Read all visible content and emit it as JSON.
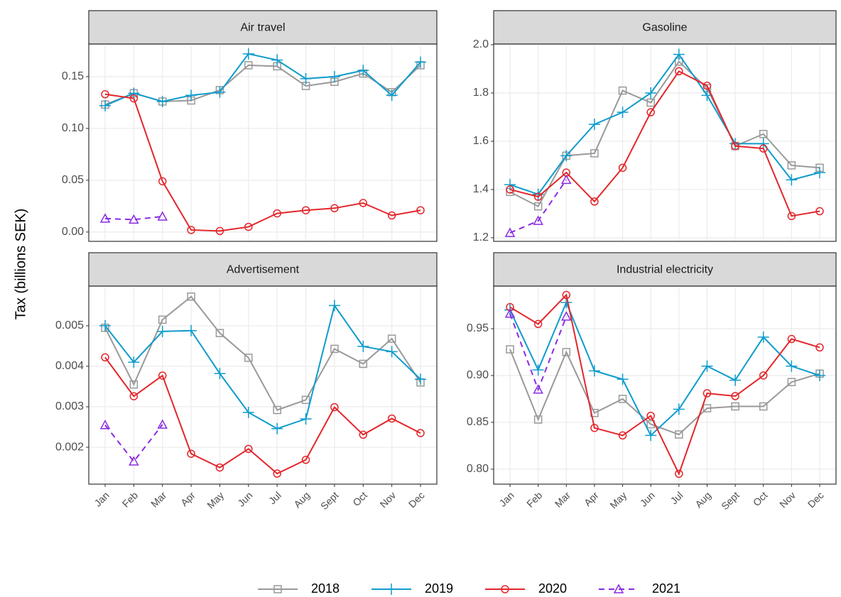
{
  "ylabel": "Tax (billions SEK)",
  "chart_data": [
    {
      "type": "line",
      "title": "Air travel",
      "categories": [
        "Jan",
        "Feb",
        "Mar",
        "Apr",
        "May",
        "Jun",
        "Jul",
        "Aug",
        "Sept",
        "Oct",
        "Nov",
        "Dec"
      ],
      "ylim": [
        -0.009,
        0.1815
      ],
      "yticks": [
        {
          "value": 0,
          "label": "0.00"
        },
        {
          "value": 0.05,
          "label": "0.05"
        },
        {
          "value": 0.1,
          "label": "0.10"
        },
        {
          "value": 0.15,
          "label": "0.15"
        }
      ],
      "grid": true,
      "series": [
        {
          "name": "2018",
          "color": "#999999",
          "marker": "square",
          "dashed": false,
          "values": [
            0.123,
            0.134,
            0.126,
            0.127,
            0.137,
            0.161,
            0.16,
            0.141,
            0.145,
            0.153,
            0.135,
            0.161
          ]
        },
        {
          "name": "2019",
          "color": "#0f9ccc",
          "marker": "plus",
          "dashed": false,
          "values": [
            0.122,
            0.134,
            0.126,
            0.132,
            0.135,
            0.172,
            0.166,
            0.148,
            0.15,
            0.156,
            0.132,
            0.164
          ]
        },
        {
          "name": "2020",
          "color": "#e3262b",
          "marker": "circle",
          "dashed": false,
          "values": [
            0.133,
            0.129,
            0.049,
            0.002,
            0.001,
            0.005,
            0.018,
            0.021,
            0.023,
            0.028,
            0.016,
            0.021
          ]
        },
        {
          "name": "2021",
          "color": "#8a2be2",
          "marker": "triangle",
          "dashed": true,
          "values": [
            0.013,
            0.012,
            0.015,
            null,
            null,
            null,
            null,
            null,
            null,
            null,
            null,
            null
          ]
        }
      ]
    },
    {
      "type": "line",
      "title": "Gasoline",
      "categories": [
        "Jan",
        "Feb",
        "Mar",
        "Apr",
        "May",
        "Jun",
        "Jul",
        "Aug",
        "Sept",
        "Oct",
        "Nov",
        "Dec"
      ],
      "ylim": [
        1.185,
        2.003
      ],
      "yticks": [
        1.2,
        1.4,
        1.6,
        1.8,
        {
          "value": 2,
          "label": "2.0"
        }
      ],
      "grid": true,
      "series": [
        {
          "name": "2018",
          "color": "#999999",
          "marker": "square",
          "dashed": false,
          "values": [
            1.39,
            1.33,
            1.54,
            1.55,
            1.81,
            1.76,
            1.93,
            1.82,
            1.58,
            1.63,
            1.5,
            1.49
          ]
        },
        {
          "name": "2019",
          "color": "#0f9ccc",
          "marker": "plus",
          "dashed": false,
          "values": [
            1.42,
            1.38,
            1.54,
            1.67,
            1.72,
            1.8,
            1.96,
            1.79,
            1.59,
            1.59,
            1.44,
            1.47
          ]
        },
        {
          "name": "2020",
          "color": "#e3262b",
          "marker": "circle",
          "dashed": false,
          "values": [
            1.4,
            1.37,
            1.47,
            1.35,
            1.49,
            1.72,
            1.89,
            1.83,
            1.58,
            1.57,
            1.29,
            1.31
          ]
        },
        {
          "name": "2021",
          "color": "#8a2be2",
          "marker": "triangle",
          "dashed": true,
          "values": [
            1.22,
            1.27,
            1.44,
            null,
            null,
            null,
            null,
            null,
            null,
            null,
            null,
            null
          ]
        }
      ]
    },
    {
      "type": "line",
      "title": "Advertisement",
      "categories": [
        "Jan",
        "Feb",
        "Mar",
        "Apr",
        "May",
        "Jun",
        "Jul",
        "Aug",
        "Sept",
        "Oct",
        "Nov",
        "Dec"
      ],
      "ylim": [
        0.00109,
        0.00598
      ],
      "yticks": [
        0.002,
        0.003,
        0.004,
        0.005
      ],
      "grid": true,
      "series": [
        {
          "name": "2018",
          "color": "#999999",
          "marker": "square",
          "dashed": false,
          "values": [
            0.00495,
            0.00355,
            0.00515,
            0.00572,
            0.00482,
            0.00421,
            0.00292,
            0.00317,
            0.00443,
            0.00406,
            0.00468,
            0.0036
          ]
        },
        {
          "name": "2019",
          "color": "#0f9ccc",
          "marker": "plus",
          "dashed": false,
          "values": [
            0.005,
            0.0041,
            0.00486,
            0.00488,
            0.00382,
            0.00286,
            0.00246,
            0.0027,
            0.0055,
            0.00449,
            0.00436,
            0.00368
          ]
        },
        {
          "name": "2020",
          "color": "#e3262b",
          "marker": "circle",
          "dashed": false,
          "values": [
            0.00422,
            0.00326,
            0.00377,
            0.00184,
            0.0015,
            0.00196,
            0.00135,
            0.00169,
            0.00299,
            0.00231,
            0.00271,
            0.00235
          ]
        },
        {
          "name": "2021",
          "color": "#8a2be2",
          "marker": "triangle",
          "dashed": true,
          "values": [
            0.00255,
            0.00165,
            0.00256,
            null,
            null,
            null,
            null,
            null,
            null,
            null,
            null,
            null
          ]
        }
      ]
    },
    {
      "type": "line",
      "title": "Industrial electricity",
      "categories": [
        "Jan",
        "Feb",
        "Mar",
        "Apr",
        "May",
        "Jun",
        "Jul",
        "Aug",
        "Sept",
        "Oct",
        "Nov",
        "Dec"
      ],
      "ylim": [
        0.784,
        0.9955
      ],
      "yticks": [
        {
          "value": 0.8,
          "label": "0.80"
        },
        0.85,
        {
          "value": 0.9,
          "label": "0.90"
        },
        0.95
      ],
      "grid": true,
      "series": [
        {
          "name": "2018",
          "color": "#999999",
          "marker": "square",
          "dashed": false,
          "values": [
            0.928,
            0.853,
            0.925,
            0.86,
            0.875,
            0.848,
            0.837,
            0.865,
            0.867,
            0.867,
            0.893,
            0.902
          ]
        },
        {
          "name": "2019",
          "color": "#0f9ccc",
          "marker": "plus",
          "dashed": false,
          "values": [
            0.97,
            0.906,
            0.978,
            0.905,
            0.896,
            0.836,
            0.864,
            0.91,
            0.895,
            0.941,
            0.91,
            0.9
          ]
        },
        {
          "name": "2020",
          "color": "#e3262b",
          "marker": "circle",
          "dashed": false,
          "values": [
            0.973,
            0.955,
            0.986,
            0.844,
            0.836,
            0.857,
            0.795,
            0.881,
            0.878,
            0.9,
            0.939,
            0.93
          ]
        },
        {
          "name": "2021",
          "color": "#8a2be2",
          "marker": "triangle",
          "dashed": true,
          "values": [
            0.966,
            0.885,
            0.963,
            null,
            null,
            null,
            null,
            null,
            null,
            null,
            null,
            null
          ]
        }
      ]
    }
  ]
}
